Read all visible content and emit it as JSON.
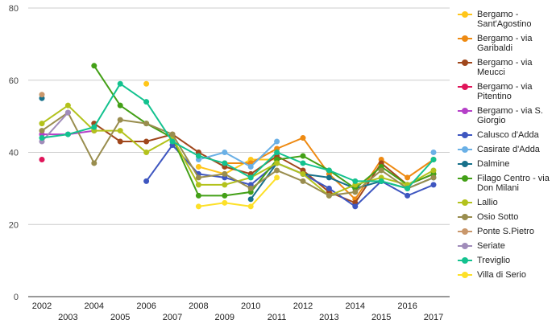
{
  "chart_data": {
    "type": "line",
    "title": "",
    "xlabel": "",
    "ylabel": "",
    "x": [
      2002,
      2003,
      2004,
      2005,
      2006,
      2007,
      2008,
      2009,
      2010,
      2011,
      2012,
      2013,
      2014,
      2015,
      2016,
      2017
    ],
    "xticks_top": [
      "2002",
      "2004",
      "2006",
      "2008",
      "2010",
      "2012",
      "2014",
      "2016"
    ],
    "xticks_bottom": [
      "2003",
      "2005",
      "2007",
      "2009",
      "2011",
      "2013",
      "2015",
      "2017"
    ],
    "ylim": [
      0,
      80
    ],
    "yticks": [
      "0",
      "20",
      "40",
      "60",
      "80"
    ],
    "grid": true,
    "legend": "right",
    "series": [
      {
        "name": "Bergamo - Sant'Agostino",
        "color": "#ffc61a",
        "values": [
          null,
          null,
          null,
          null,
          59,
          null,
          36,
          34,
          38,
          38,
          null,
          null,
          null,
          null,
          null,
          null
        ]
      },
      {
        "name": "Bergamo - via Garibaldi",
        "color": "#ee8a12",
        "values": [
          null,
          null,
          null,
          null,
          null,
          null,
          null,
          37,
          37,
          41,
          44,
          34,
          27,
          38,
          33,
          38
        ]
      },
      {
        "name": "Bergamo - via Meucci",
        "color": "#a0471c",
        "values": [
          null,
          null,
          48,
          43,
          43,
          45,
          40,
          36,
          34,
          39,
          35,
          29,
          26,
          37,
          31,
          34
        ]
      },
      {
        "name": "Bergamo - via Pitentino",
        "color": "#e0155a",
        "values": [
          38,
          null,
          null,
          null,
          null,
          null,
          null,
          null,
          null,
          null,
          null,
          null,
          null,
          null,
          null,
          null
        ]
      },
      {
        "name": "Bergamo - via S. Giorgio",
        "color": "#b540c8",
        "values": [
          45,
          45,
          46,
          null,
          null,
          null,
          null,
          null,
          null,
          null,
          null,
          null,
          null,
          null,
          null,
          null
        ]
      },
      {
        "name": "Calusco d'Adda",
        "color": "#3e56c0",
        "values": [
          null,
          null,
          null,
          null,
          32,
          42,
          34,
          33,
          31,
          37,
          34,
          30,
          25,
          32,
          28,
          31
        ]
      },
      {
        "name": "Casirate d'Adda",
        "color": "#6ab0e6",
        "values": [
          null,
          null,
          null,
          null,
          null,
          null,
          38,
          40,
          36,
          43,
          null,
          null,
          null,
          null,
          null,
          40
        ]
      },
      {
        "name": "Dalmine",
        "color": "#17708a",
        "values": [
          55,
          null,
          null,
          null,
          null,
          null,
          null,
          null,
          27,
          37,
          34,
          33,
          30,
          32,
          30,
          33
        ]
      },
      {
        "name": "Filago Centro - via Don Milani",
        "color": "#43a017",
        "values": [
          null,
          null,
          64,
          53,
          48,
          44,
          28,
          28,
          29,
          38,
          39,
          35,
          30,
          36,
          31,
          34
        ]
      },
      {
        "name": "Lallio",
        "color": "#b3c21c",
        "values": [
          48,
          53,
          46,
          46,
          40,
          44,
          31,
          31,
          33,
          37,
          34,
          28,
          31,
          33,
          31,
          35
        ]
      },
      {
        "name": "Osio Sotto",
        "color": "#998d4e",
        "values": [
          46,
          51,
          37,
          49,
          48,
          45,
          33,
          34,
          30,
          35,
          32,
          28,
          29,
          35,
          30,
          33
        ]
      },
      {
        "name": "Ponte S.Pietro",
        "color": "#c9976b",
        "values": [
          56,
          null,
          null,
          null,
          null,
          null,
          null,
          null,
          null,
          null,
          null,
          null,
          null,
          null,
          null,
          null
        ]
      },
      {
        "name": "Seriate",
        "color": "#a08cba",
        "values": [
          43,
          51,
          null,
          null,
          null,
          null,
          null,
          null,
          null,
          null,
          null,
          null,
          null,
          null,
          null,
          null
        ]
      },
      {
        "name": "Treviglio",
        "color": "#13c28f",
        "values": [
          44,
          45,
          47,
          59,
          54,
          43,
          39,
          37,
          33,
          40,
          37,
          35,
          32,
          32,
          30,
          38
        ]
      },
      {
        "name": "Villa di Serio",
        "color": "#fde028",
        "values": [
          null,
          null,
          null,
          null,
          null,
          null,
          25,
          26,
          25,
          33,
          null,
          null,
          null,
          null,
          null,
          null
        ]
      }
    ]
  }
}
